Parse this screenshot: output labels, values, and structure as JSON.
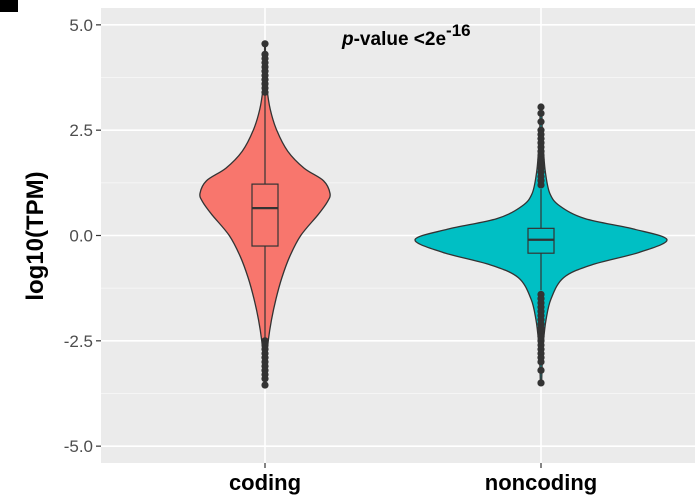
{
  "chart_data": {
    "type": "violin",
    "ylabel": "log10(TPM)",
    "ylim": [
      -5.4,
      5.4
    ],
    "yticks": [
      5.0,
      2.5,
      0.0,
      -2.5,
      -5.0
    ],
    "ytick_labels": [
      "5.0",
      "2.5",
      "0.0",
      "-2.5",
      "-5.0"
    ],
    "categories": [
      "coding",
      "noncoding"
    ],
    "series": [
      {
        "category": "coding",
        "color": "#F8766D",
        "box": {
          "q1": -0.25,
          "median": 0.65,
          "q3": 1.22,
          "whisker_low": -2.45,
          "whisker_high": 3.35
        },
        "range": [
          -3.55,
          4.55
        ],
        "outliers": [
          4.55,
          4.3,
          4.2,
          4.1,
          4.0,
          3.9,
          3.8,
          3.7,
          3.6,
          3.5,
          3.4,
          -2.5,
          -2.6,
          -2.7,
          -2.8,
          -2.9,
          -3.0,
          -3.1,
          -3.2,
          -3.3,
          -3.4,
          -3.55
        ],
        "density": [
          [
            -3.55,
            0.01
          ],
          [
            -3.0,
            0.02
          ],
          [
            -2.5,
            0.05
          ],
          [
            -2.0,
            0.1
          ],
          [
            -1.5,
            0.17
          ],
          [
            -1.0,
            0.26
          ],
          [
            -0.5,
            0.38
          ],
          [
            0.0,
            0.55
          ],
          [
            0.5,
            0.82
          ],
          [
            0.8,
            0.96
          ],
          [
            1.0,
            1.0
          ],
          [
            1.3,
            0.9
          ],
          [
            1.6,
            0.6
          ],
          [
            2.0,
            0.35
          ],
          [
            2.5,
            0.18
          ],
          [
            3.0,
            0.08
          ],
          [
            3.5,
            0.03
          ],
          [
            4.0,
            0.01
          ],
          [
            4.55,
            0.005
          ]
        ]
      },
      {
        "category": "noncoding",
        "color": "#00BFC4",
        "box": {
          "q1": -0.42,
          "median": -0.1,
          "q3": 0.17,
          "whisker_low": -1.3,
          "whisker_high": 1.1
        },
        "range": [
          -3.5,
          3.05
        ],
        "outliers": [
          3.05,
          2.9,
          2.7,
          2.5,
          2.4,
          2.3,
          2.2,
          2.1,
          2.0,
          1.9,
          1.8,
          1.7,
          1.6,
          1.5,
          1.4,
          1.3,
          1.2,
          -1.4,
          -1.5,
          -1.6,
          -1.7,
          -1.8,
          -1.9,
          -2.0,
          -2.1,
          -2.2,
          -2.3,
          -2.4,
          -2.5,
          -2.6,
          -2.7,
          -2.8,
          -2.9,
          -3.0,
          -3.2,
          -3.5
        ],
        "density": [
          [
            -3.5,
            0.005
          ],
          [
            -3.0,
            0.01
          ],
          [
            -2.5,
            0.02
          ],
          [
            -2.0,
            0.04
          ],
          [
            -1.5,
            0.08
          ],
          [
            -1.0,
            0.18
          ],
          [
            -0.7,
            0.4
          ],
          [
            -0.4,
            0.78
          ],
          [
            -0.1,
            1.0
          ],
          [
            0.15,
            0.74
          ],
          [
            0.4,
            0.35
          ],
          [
            0.7,
            0.15
          ],
          [
            1.0,
            0.07
          ],
          [
            1.5,
            0.035
          ],
          [
            2.0,
            0.02
          ],
          [
            2.5,
            0.01
          ],
          [
            3.05,
            0.005
          ]
        ]
      }
    ],
    "annotation": {
      "italic": "p",
      "text": "-value <2e",
      "superscript": "-16"
    },
    "grid": true
  }
}
